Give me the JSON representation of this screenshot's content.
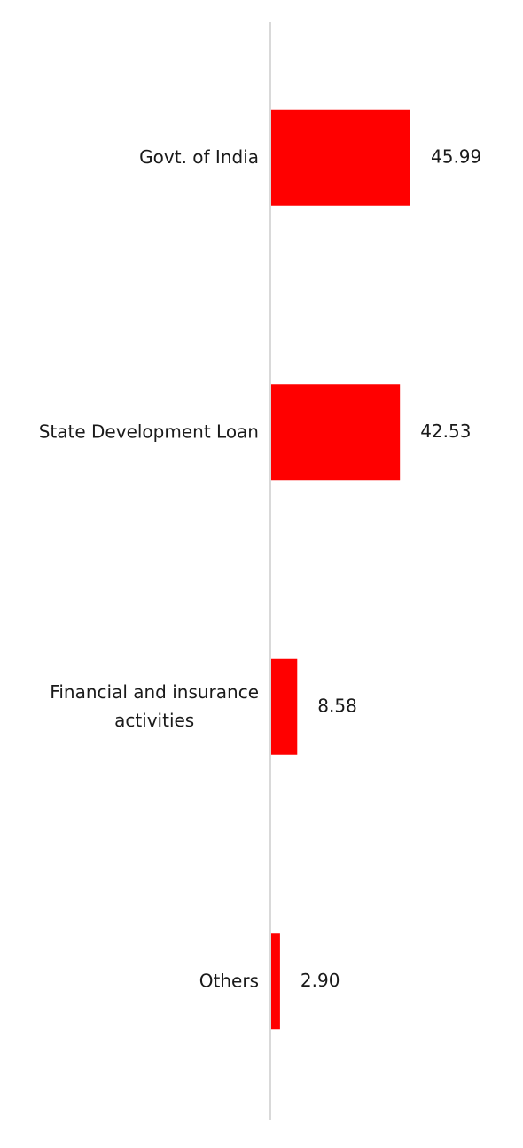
{
  "chart_data": {
    "type": "bar",
    "orientation": "horizontal",
    "categories": [
      [
        "Govt. of India"
      ],
      [
        "State Development Loan"
      ],
      [
        "Financial and insurance",
        "activities"
      ],
      [
        "Others"
      ]
    ],
    "values": [
      45.99,
      42.53,
      8.58,
      2.9
    ],
    "value_labels": [
      "45.99",
      "42.53",
      "8.58",
      "2.90"
    ],
    "bar_color": "#ff0000",
    "axis_color": "#d9d9d9",
    "xlim": [
      0,
      100
    ],
    "grid": false,
    "legend": "none"
  }
}
